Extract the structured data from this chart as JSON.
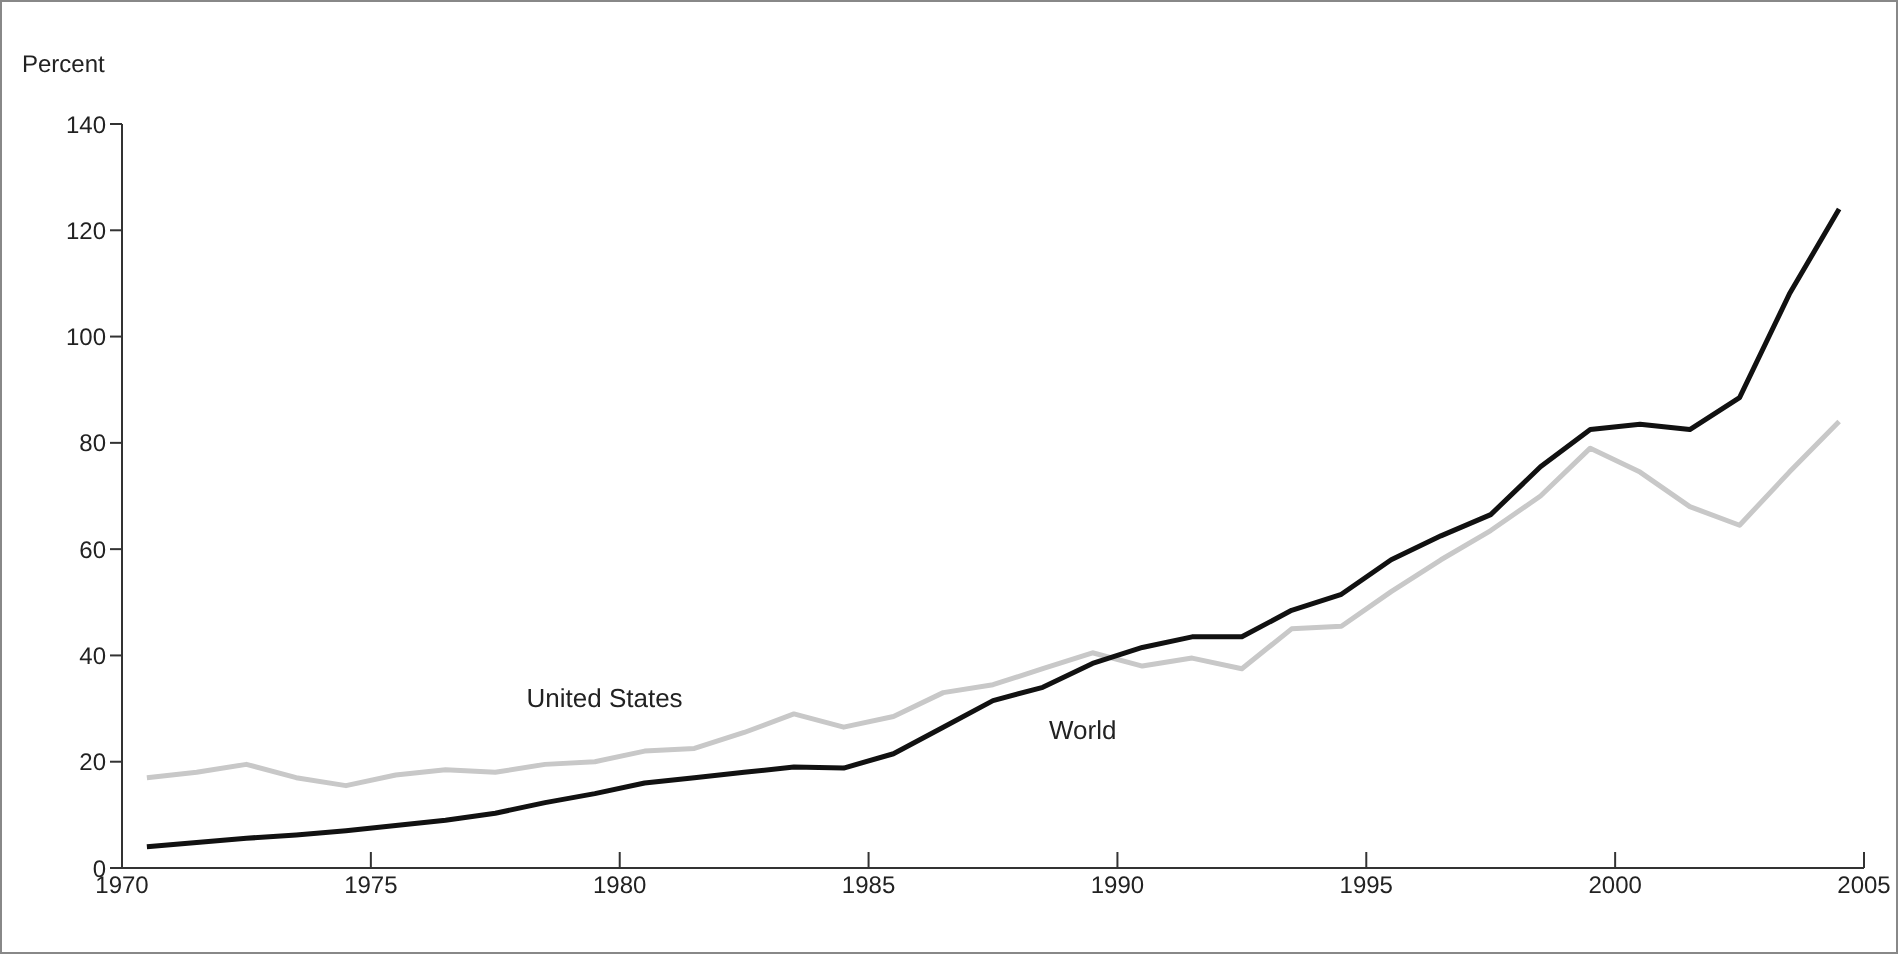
{
  "chart_data": {
    "type": "line",
    "ylabel": "Percent",
    "x": [
      1970.5,
      1971.5,
      1972.5,
      1973.5,
      1974.5,
      1975.5,
      1976.5,
      1977.5,
      1978.5,
      1979.5,
      1980.5,
      1981.5,
      1982.5,
      1983.5,
      1984.5,
      1985.5,
      1986.5,
      1987.5,
      1988.5,
      1989.5,
      1990.5,
      1991.5,
      1992.5,
      1993.5,
      1994.5,
      1995.5,
      1996.5,
      1997.5,
      1998.5,
      1999.5,
      2000.5,
      2001.5,
      2002.5,
      2003.5,
      2004.5
    ],
    "series": [
      {
        "name": "United States",
        "color": "#c8c8c8",
        "values": [
          17,
          18,
          19.5,
          17,
          15.5,
          17.5,
          18.5,
          18,
          19.5,
          20,
          22,
          22.5,
          25.5,
          29,
          26.5,
          28.5,
          33,
          34.5,
          37.5,
          40.5,
          38,
          39.5,
          37.5,
          45,
          45.5,
          52,
          58,
          63.5,
          70,
          79,
          74.5,
          68,
          64.5,
          74.5,
          84
        ]
      },
      {
        "name": "World",
        "color": "#111111",
        "values": [
          4,
          4.8,
          5.6,
          6.2,
          7,
          8,
          9,
          10.3,
          12.3,
          14,
          16,
          17,
          18,
          19,
          18.8,
          21.5,
          26.5,
          31.5,
          34,
          38.5,
          41.5,
          43.5,
          43.5,
          48.5,
          51.5,
          58,
          62.5,
          66.5,
          75.5,
          82.5,
          83.5,
          82.5,
          88.5,
          108,
          124
        ]
      }
    ],
    "xlim": [
      1970,
      2005
    ],
    "xticks": [
      1970,
      1975,
      1980,
      1985,
      1990,
      1995,
      2000,
      2005
    ],
    "ylim": [
      0,
      140
    ],
    "yticks": [
      0,
      20,
      40,
      60,
      80,
      100,
      120,
      140
    ],
    "grid": false,
    "legend": false,
    "marker": "none",
    "line_style": "solid"
  }
}
